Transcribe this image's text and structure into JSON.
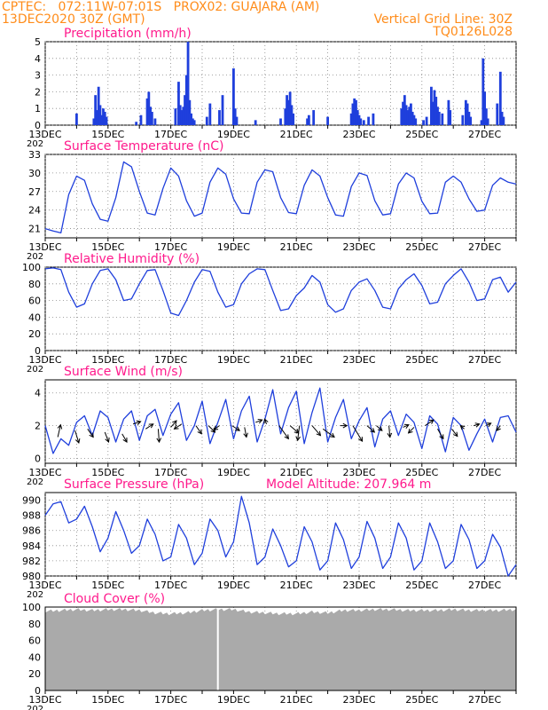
{
  "header": {
    "line1": "CPTEC:   072:11W-07:01S   PROX02: GUAJARA (AM)",
    "line2_left": "13DEC2020 30Z (GMT)",
    "line2_right": "Vertical Grid Line: 30Z",
    "line3_right": "TQ0126L028"
  },
  "colors": {
    "header": "#ff8c1a",
    "title": "#ff1a8c",
    "line": "#1f3fdc",
    "cloud": "#aaaaaa",
    "frame": "#000000"
  },
  "x_axis": {
    "tick_labels": [
      "13DEC",
      "15DEC",
      "17DEC",
      "19DEC",
      "21DEC",
      "23DEC",
      "25DEC",
      "27DEC"
    ],
    "year_fragment": "202"
  },
  "chart_data": [
    {
      "type": "bar",
      "title": "Precipitation (mm/h)",
      "xlim": [
        0,
        15
      ],
      "ylim": [
        0,
        5
      ],
      "yticks": [
        "0",
        "1",
        "2",
        "3",
        "4",
        "5"
      ],
      "bars": [
        [
          1.0,
          0.7
        ],
        [
          1.55,
          0.4
        ],
        [
          1.6,
          1.8
        ],
        [
          1.65,
          0.9
        ],
        [
          1.7,
          2.3
        ],
        [
          1.75,
          1.2
        ],
        [
          1.8,
          0.6
        ],
        [
          1.85,
          1.0
        ],
        [
          1.9,
          0.8
        ],
        [
          1.95,
          0.5
        ],
        [
          2.9,
          0.2
        ],
        [
          3.05,
          0.6
        ],
        [
          3.25,
          1.6
        ],
        [
          3.3,
          2.0
        ],
        [
          3.35,
          1.1
        ],
        [
          3.4,
          0.8
        ],
        [
          3.5,
          0.4
        ],
        [
          4.15,
          1.0
        ],
        [
          4.25,
          2.6
        ],
        [
          4.3,
          1.2
        ],
        [
          4.35,
          0.9
        ],
        [
          4.4,
          1.1
        ],
        [
          4.45,
          1.8
        ],
        [
          4.5,
          3.0
        ],
        [
          4.55,
          5.0
        ],
        [
          4.6,
          1.5
        ],
        [
          4.65,
          0.7
        ],
        [
          4.7,
          0.4
        ],
        [
          4.75,
          0.3
        ],
        [
          5.15,
          0.5
        ],
        [
          5.25,
          1.3
        ],
        [
          5.55,
          0.9
        ],
        [
          5.65,
          1.8
        ],
        [
          6.0,
          3.4
        ],
        [
          6.05,
          1.0
        ],
        [
          6.1,
          0.5
        ],
        [
          6.7,
          0.3
        ],
        [
          7.5,
          0.4
        ],
        [
          7.65,
          1.0
        ],
        [
          7.7,
          1.8
        ],
        [
          7.75,
          1.5
        ],
        [
          7.8,
          2.0
        ],
        [
          7.85,
          1.2
        ],
        [
          7.9,
          0.7
        ],
        [
          8.35,
          0.4
        ],
        [
          8.4,
          0.6
        ],
        [
          8.55,
          0.9
        ],
        [
          9.0,
          0.5
        ],
        [
          9.75,
          0.7
        ],
        [
          9.8,
          1.3
        ],
        [
          9.85,
          1.6
        ],
        [
          9.9,
          1.5
        ],
        [
          9.95,
          0.9
        ],
        [
          10.0,
          0.6
        ],
        [
          10.05,
          0.4
        ],
        [
          10.15,
          0.3
        ],
        [
          10.3,
          0.5
        ],
        [
          10.45,
          0.7
        ],
        [
          11.35,
          1.0
        ],
        [
          11.4,
          1.4
        ],
        [
          11.45,
          1.8
        ],
        [
          11.5,
          1.2
        ],
        [
          11.55,
          0.9
        ],
        [
          11.6,
          1.1
        ],
        [
          11.65,
          1.3
        ],
        [
          11.7,
          0.8
        ],
        [
          11.75,
          0.6
        ],
        [
          11.8,
          0.4
        ],
        [
          12.05,
          0.3
        ],
        [
          12.15,
          0.5
        ],
        [
          12.3,
          2.3
        ],
        [
          12.35,
          1.4
        ],
        [
          12.4,
          2.1
        ],
        [
          12.45,
          1.7
        ],
        [
          12.5,
          1.1
        ],
        [
          12.55,
          0.8
        ],
        [
          12.65,
          0.7
        ],
        [
          12.85,
          1.5
        ],
        [
          12.9,
          0.9
        ],
        [
          13.3,
          0.6
        ],
        [
          13.4,
          1.5
        ],
        [
          13.45,
          1.3
        ],
        [
          13.5,
          0.8
        ],
        [
          13.55,
          0.5
        ],
        [
          13.9,
          0.3
        ],
        [
          13.95,
          4.0
        ],
        [
          14.0,
          2.0
        ],
        [
          14.05,
          1.0
        ],
        [
          14.1,
          0.4
        ],
        [
          14.4,
          1.3
        ],
        [
          14.5,
          3.2
        ],
        [
          14.55,
          0.8
        ],
        [
          14.6,
          0.5
        ]
      ]
    },
    {
      "type": "line",
      "title": "Surface Temperature (nC)",
      "xlim": [
        0,
        15
      ],
      "ylim": [
        19.5,
        33
      ],
      "yticks": [
        "21",
        "24",
        "27",
        "30",
        "33"
      ],
      "x": [
        0.0,
        0.25,
        0.5,
        0.75,
        1.0,
        1.25,
        1.5,
        1.75,
        2.0,
        2.25,
        2.5,
        2.75,
        3.0,
        3.25,
        3.5,
        3.75,
        4.0,
        4.25,
        4.5,
        4.75,
        5.0,
        5.25,
        5.5,
        5.75,
        6.0,
        6.25,
        6.5,
        6.75,
        7.0,
        7.25,
        7.5,
        7.75,
        8.0,
        8.25,
        8.5,
        8.75,
        9.0,
        9.25,
        9.5,
        9.75,
        10.0,
        10.25,
        10.5,
        10.75,
        11.0,
        11.25,
        11.5,
        11.75,
        12.0,
        12.25,
        12.5,
        12.75,
        13.0,
        13.25,
        13.5,
        13.75,
        14.0,
        14.25,
        14.5,
        14.75,
        15.0
      ],
      "y": [
        21.0,
        20.6,
        20.3,
        26.5,
        29.5,
        28.8,
        25.0,
        22.5,
        22.2,
        26.0,
        31.8,
        31.0,
        27.0,
        23.5,
        23.2,
        27.5,
        30.8,
        29.5,
        25.5,
        23.0,
        23.5,
        28.5,
        30.8,
        29.8,
        25.8,
        23.5,
        23.4,
        28.5,
        30.5,
        30.2,
        26.0,
        23.6,
        23.4,
        28.0,
        30.5,
        29.5,
        26.0,
        23.2,
        23.0,
        27.8,
        30.0,
        29.6,
        25.5,
        23.2,
        23.4,
        28.2,
        30.0,
        29.2,
        25.4,
        23.4,
        23.5,
        28.5,
        29.5,
        28.5,
        25.8,
        23.8,
        24.0,
        28.0,
        29.2,
        28.5,
        28.2
      ]
    },
    {
      "type": "line",
      "title": "Relative Humidity (%)",
      "xlim": [
        0,
        15
      ],
      "ylim": [
        0,
        100
      ],
      "yticks": [
        "0",
        "20",
        "40",
        "60",
        "80",
        "100"
      ],
      "x": [
        0.0,
        0.25,
        0.5,
        0.75,
        1.0,
        1.25,
        1.5,
        1.75,
        2.0,
        2.25,
        2.5,
        2.75,
        3.0,
        3.25,
        3.5,
        3.75,
        4.0,
        4.25,
        4.5,
        4.75,
        5.0,
        5.25,
        5.5,
        5.75,
        6.0,
        6.25,
        6.5,
        6.75,
        7.0,
        7.25,
        7.5,
        7.75,
        8.0,
        8.25,
        8.5,
        8.75,
        9.0,
        9.25,
        9.5,
        9.75,
        10.0,
        10.25,
        10.5,
        10.75,
        11.0,
        11.25,
        11.5,
        11.75,
        12.0,
        12.25,
        12.5,
        12.75,
        13.0,
        13.25,
        13.5,
        13.75,
        14.0,
        14.25,
        14.5,
        14.75,
        15.0
      ],
      "y": [
        98,
        99,
        97,
        70,
        52,
        56,
        80,
        96,
        98,
        85,
        60,
        62,
        80,
        96,
        97,
        72,
        45,
        42,
        60,
        82,
        97,
        95,
        70,
        52,
        55,
        80,
        92,
        98,
        97,
        72,
        48,
        50,
        66,
        75,
        90,
        82,
        55,
        46,
        50,
        72,
        82,
        86,
        72,
        52,
        50,
        74,
        85,
        92,
        78,
        56,
        58,
        80,
        90,
        98,
        82,
        60,
        62,
        85,
        88,
        70,
        82
      ]
    },
    {
      "type": "line",
      "title": "Surface Wind (m/s)",
      "xlim": [
        0,
        15
      ],
      "ylim": [
        -0.3,
        4.8
      ],
      "yticks": [
        "0",
        "2",
        "4"
      ],
      "x": [
        0.0,
        0.25,
        0.5,
        0.75,
        1.0,
        1.25,
        1.5,
        1.75,
        2.0,
        2.25,
        2.5,
        2.75,
        3.0,
        3.25,
        3.5,
        3.75,
        4.0,
        4.25,
        4.5,
        4.75,
        5.0,
        5.25,
        5.5,
        5.75,
        6.0,
        6.25,
        6.5,
        6.75,
        7.0,
        7.25,
        7.5,
        7.75,
        8.0,
        8.25,
        8.5,
        8.75,
        9.0,
        9.25,
        9.5,
        9.75,
        10.0,
        10.25,
        10.5,
        10.75,
        11.0,
        11.25,
        11.5,
        11.75,
        12.0,
        12.25,
        12.5,
        12.75,
        13.0,
        13.25,
        13.5,
        13.75,
        14.0,
        14.25,
        14.5,
        14.75,
        15.0
      ],
      "y": [
        2.0,
        0.3,
        1.2,
        0.8,
        2.2,
        2.6,
        1.4,
        2.9,
        2.5,
        1.0,
        2.4,
        2.9,
        1.1,
        2.6,
        3.0,
        1.4,
        2.7,
        3.4,
        1.1,
        2.0,
        3.5,
        0.9,
        2.2,
        3.6,
        1.2,
        2.9,
        3.8,
        1.0,
        2.4,
        4.2,
        1.5,
        3.1,
        4.1,
        0.9,
        2.8,
        4.3,
        1.0,
        2.5,
        3.6,
        1.2,
        2.3,
        3.1,
        0.7,
        2.4,
        2.9,
        1.4,
        2.7,
        2.2,
        0.6,
        2.6,
        2.1,
        0.4,
        2.5,
        2.0,
        0.5,
        1.5,
        2.4,
        1.0,
        2.5,
        2.6,
        1.6
      ],
      "arrows": [
        [
          0.4,
          1.3,
          0.15,
          0.75
        ],
        [
          0.95,
          1.7,
          0.2,
          -0.75
        ],
        [
          1.35,
          1.8,
          0.3,
          -0.5
        ],
        [
          1.9,
          1.6,
          0.2,
          -0.6
        ],
        [
          2.45,
          1.5,
          0.25,
          -0.5
        ],
        [
          2.8,
          2.1,
          0.4,
          0.15
        ],
        [
          3.2,
          1.8,
          0.4,
          0.3
        ],
        [
          3.6,
          1.8,
          0.05,
          -0.8
        ],
        [
          4.0,
          1.9,
          0.3,
          0.4
        ],
        [
          4.35,
          2.1,
          -0.4,
          -0.3
        ],
        [
          4.8,
          2.0,
          0.3,
          -0.5
        ],
        [
          5.2,
          2.0,
          0.35,
          -0.4
        ],
        [
          5.55,
          2.0,
          -0.3,
          -0.25
        ],
        [
          5.95,
          2.0,
          0.4,
          -0.3
        ],
        [
          6.35,
          1.9,
          0.1,
          -0.6
        ],
        [
          6.7,
          2.2,
          0.35,
          0.15
        ],
        [
          7.05,
          2.1,
          -0.1,
          0.3
        ],
        [
          7.45,
          2.0,
          0.5,
          -0.8
        ],
        [
          7.8,
          2.0,
          0.45,
          -0.45
        ],
        [
          8.1,
          2.0,
          -0.1,
          -0.9
        ],
        [
          8.5,
          2.0,
          0.45,
          -0.6
        ],
        [
          8.85,
          1.8,
          0.6,
          -0.5
        ],
        [
          9.4,
          2.0,
          0.35,
          0.0
        ],
        [
          9.8,
          2.0,
          0.5,
          -0.95
        ],
        [
          10.25,
          2.0,
          0.4,
          -0.4
        ],
        [
          10.55,
          2.0,
          0.3,
          -0.3
        ],
        [
          10.95,
          2.0,
          0.05,
          -0.7
        ],
        [
          11.4,
          1.9,
          0.3,
          0.15
        ],
        [
          11.75,
          1.9,
          -0.3,
          -0.35
        ],
        [
          12.1,
          2.0,
          0.45,
          0.35
        ],
        [
          12.5,
          1.8,
          0.3,
          -0.6
        ],
        [
          12.95,
          1.8,
          0.3,
          -0.45
        ],
        [
          13.35,
          1.8,
          -0.2,
          0.2
        ],
        [
          13.65,
          2.0,
          0.3,
          0.1
        ],
        [
          14.05,
          2.0,
          0.25,
          0.15
        ],
        [
          14.5,
          2.0,
          -0.2,
          -0.3
        ]
      ]
    },
    {
      "type": "line",
      "title": "Surface Pressure (hPa)",
      "annotation": "Model Altitude: 207.964 m",
      "xlim": [
        0,
        15
      ],
      "ylim": [
        980,
        991
      ],
      "yticks": [
        "980",
        "982",
        "984",
        "986",
        "988",
        "990"
      ],
      "x": [
        0.0,
        0.25,
        0.5,
        0.75,
        1.0,
        1.25,
        1.5,
        1.75,
        2.0,
        2.25,
        2.5,
        2.75,
        3.0,
        3.25,
        3.5,
        3.75,
        4.0,
        4.25,
        4.5,
        4.75,
        5.0,
        5.25,
        5.5,
        5.75,
        6.0,
        6.25,
        6.5,
        6.75,
        7.0,
        7.25,
        7.5,
        7.75,
        8.0,
        8.25,
        8.5,
        8.75,
        9.0,
        9.25,
        9.5,
        9.75,
        10.0,
        10.25,
        10.5,
        10.75,
        11.0,
        11.25,
        11.5,
        11.75,
        12.0,
        12.25,
        12.5,
        12.75,
        13.0,
        13.25,
        13.5,
        13.75,
        14.0,
        14.25,
        14.5,
        14.75,
        15.0
      ],
      "y": [
        988.0,
        989.5,
        989.8,
        987.0,
        987.5,
        989.2,
        986.5,
        983.2,
        985.0,
        988.5,
        986.0,
        983.0,
        984.0,
        987.5,
        985.5,
        982.0,
        982.5,
        986.8,
        985.0,
        981.5,
        983.0,
        987.5,
        986.0,
        982.5,
        984.5,
        990.5,
        987.0,
        981.5,
        982.5,
        986.2,
        984.0,
        981.2,
        982.0,
        986.5,
        984.5,
        980.8,
        982.0,
        987.0,
        984.8,
        981.0,
        982.5,
        987.2,
        985.0,
        981.0,
        982.5,
        987.0,
        985.0,
        980.8,
        982.0,
        987.0,
        984.5,
        981.0,
        982.0,
        986.8,
        984.8,
        981.0,
        982.0,
        985.5,
        983.8,
        980.0,
        981.5
      ]
    },
    {
      "type": "area",
      "title": "Cloud Cover (%)",
      "xlim": [
        0,
        15
      ],
      "ylim": [
        0,
        100
      ],
      "yticks": [
        "0",
        "20",
        "40",
        "60",
        "80",
        "100"
      ],
      "x": [
        0.0,
        0.5,
        1.0,
        1.5,
        2.0,
        2.5,
        3.0,
        3.5,
        4.0,
        4.5,
        5.0,
        5.5,
        6.0,
        6.5,
        7.0,
        7.5,
        8.0,
        8.5,
        9.0,
        9.5,
        10.0,
        10.5,
        11.0,
        11.5,
        12.0,
        12.5,
        13.0,
        13.5,
        14.0,
        14.5,
        15.0
      ],
      "y": [
        95,
        96,
        97,
        96,
        97,
        97,
        96,
        93,
        92,
        93,
        96,
        97,
        97,
        94,
        93,
        92,
        92,
        94,
        93,
        96,
        96,
        97,
        97,
        96,
        96,
        96,
        97,
        96,
        96,
        96,
        97
      ],
      "gap_x": 5.5
    }
  ]
}
